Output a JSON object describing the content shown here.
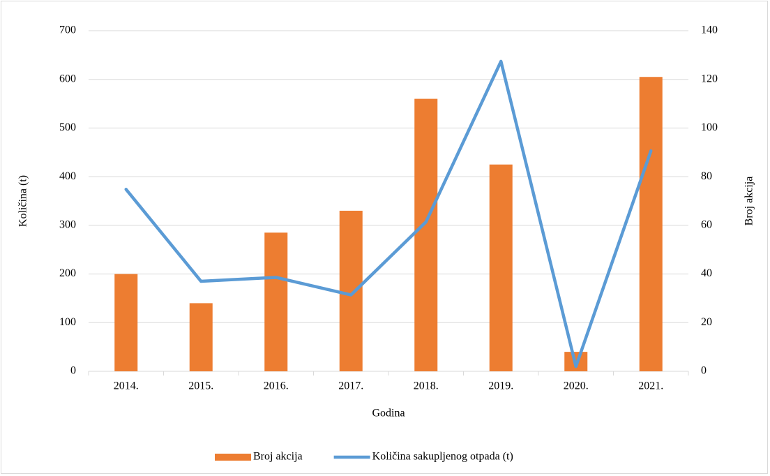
{
  "chart_data": {
    "type": "combo",
    "x_label": "Godina",
    "y_label": "Količina (t)",
    "y2_label": "Broj akcija",
    "categories": [
      "2014.",
      "2015.",
      "2016.",
      "2017.",
      "2018.",
      "2019.",
      "2020.",
      "2021."
    ],
    "series": [
      {
        "name": "Broj akcija",
        "type": "bar",
        "axis": "y2",
        "color": "#ed7d31",
        "values": [
          40,
          28,
          57,
          66,
          112,
          85,
          8,
          121
        ]
      },
      {
        "name": "Količina sakupljenog otpada (t)",
        "type": "line",
        "color": "#5b9bd5",
        "values": [
          374,
          185,
          193,
          157,
          307,
          637,
          10,
          453
        ]
      }
    ],
    "ylim": [
      0,
      700
    ],
    "yticks": [
      0,
      100,
      200,
      300,
      400,
      500,
      600,
      700
    ],
    "y2lim": [
      0,
      140
    ],
    "y2ticks": [
      0,
      20,
      40,
      60,
      80,
      100,
      120,
      140
    ],
    "grid": true,
    "legend": "bottom"
  }
}
